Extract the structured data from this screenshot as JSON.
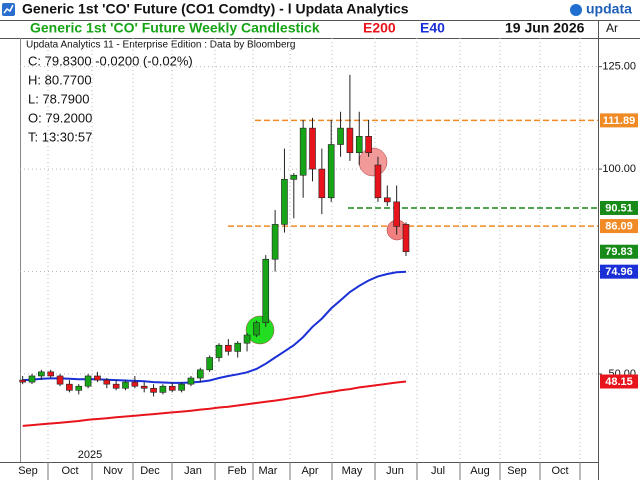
{
  "window": {
    "title": "Generic 1st 'CO' Future (CO1 Comdty) - l  Updata Analytics",
    "logo": "updata"
  },
  "chart_data": {
    "type": "candlestick",
    "title": "Generic 1st 'CO' Future Weekly Candlestick",
    "date": "19 Jun 2026",
    "corner_label": "Ar",
    "info": [
      "Updata Analytics 11 - Enterprise Edition : Data by Bloomberg",
      "C: 79.8300  -0.0200 (-0.02%)",
      "H: 80.7700",
      "L: 78.7900",
      "O: 79.2000",
      "T: 13:30:57"
    ],
    "x_labels": [
      "Sep",
      "Oct",
      "Nov",
      "Dec",
      "Jan",
      "Feb",
      "Mar",
      "Apr",
      "May",
      "Jun",
      "Jul",
      "Aug",
      "Sep",
      "Oct"
    ],
    "year_label": "2025",
    "up_color": "#17a517",
    "down_color": "#e8141c",
    "open": [
      48.5,
      48,
      49.5,
      50.5,
      49.5,
      47.5,
      46,
      47,
      49.5,
      48.5,
      47.5,
      46.5,
      48,
      47,
      46.5,
      45.5,
      47,
      46,
      47.5,
      49,
      51,
      54,
      57,
      55.5,
      57.5,
      59.5,
      62.5,
      78,
      86.5,
      97.5,
      98.5,
      110,
      100,
      93,
      106,
      110,
      104,
      108,
      101,
      93,
      92,
      86.5
    ],
    "high": [
      49.5,
      50,
      51,
      51,
      50,
      48.5,
      47.5,
      50,
      50.5,
      49,
      48.5,
      48.5,
      49.5,
      48,
      47.5,
      47.5,
      48,
      48,
      49.5,
      51.5,
      54.5,
      57.5,
      58.5,
      58,
      60,
      63,
      79,
      90,
      105,
      99,
      112,
      112.5,
      105,
      112,
      114,
      123,
      114,
      112,
      103,
      96,
      96,
      87
    ],
    "low": [
      47.5,
      47.5,
      48.5,
      49,
      47,
      45.5,
      45,
      46.5,
      48,
      46.5,
      46,
      46,
      46.5,
      45.5,
      44.5,
      45,
      45.5,
      45.5,
      47,
      48,
      50.5,
      53,
      54.5,
      54,
      55.5,
      59,
      61.5,
      75,
      84.5,
      88,
      93,
      97,
      89,
      92,
      103,
      102,
      101,
      103,
      92,
      91,
      84,
      78.79
    ],
    "close": [
      48,
      49.5,
      50.5,
      49.5,
      47.5,
      46,
      47,
      49.5,
      48.5,
      47.5,
      46.5,
      48,
      47,
      46.5,
      45.5,
      47,
      46,
      47.5,
      49,
      51,
      54,
      57,
      55.5,
      57.5,
      59.5,
      62.5,
      78,
      86.5,
      97.5,
      98.5,
      110,
      100,
      93,
      106,
      110,
      104,
      108,
      104,
      93,
      92,
      86,
      79.83
    ],
    "series": [
      {
        "name": "E200",
        "color": "#e8141c",
        "values": [
          37.3,
          37.5,
          37.7,
          37.9,
          38.1,
          38.3,
          38.5,
          38.8,
          39.0,
          39.2,
          39.4,
          39.6,
          39.8,
          40.0,
          40.2,
          40.4,
          40.6,
          40.8,
          41.0,
          41.3,
          41.5,
          41.8,
          42.0,
          42.3,
          42.6,
          42.9,
          43.2,
          43.5,
          43.8,
          44.2,
          44.5,
          44.9,
          45.3,
          45.6,
          46.0,
          46.3,
          46.7,
          47.0,
          47.3,
          47.6,
          47.9,
          48.15
        ]
      },
      {
        "name": "E40",
        "color": "#1a2fd6",
        "values": [
          48.5,
          48.6,
          48.8,
          48.9,
          48.9,
          48.8,
          48.7,
          48.7,
          48.7,
          48.6,
          48.5,
          48.4,
          48.3,
          48.2,
          48.0,
          47.9,
          47.8,
          47.8,
          47.9,
          48.1,
          48.4,
          49,
          49.5,
          49.9,
          50.4,
          51.2,
          52.5,
          54,
          55.5,
          57,
          59,
          61.5,
          63.5,
          66,
          68,
          70,
          71.5,
          72.8,
          73.8,
          74.4,
          74.8,
          74.96
        ]
      }
    ],
    "ylim": [
      28.5,
      132
    ],
    "yticks": [
      {
        "value": 50,
        "label": "50.00"
      },
      {
        "value": 75,
        "label": "75.00"
      },
      {
        "value": 100,
        "label": "100.00"
      },
      {
        "value": 125,
        "label": "125.00"
      }
    ],
    "grid": true,
    "price_markers": [
      {
        "value": 111.89,
        "color": "#f08a24",
        "line": "dashed"
      },
      {
        "value": 90.51,
        "color": "#178a17",
        "line": "dashed"
      },
      {
        "value": 86.09,
        "color": "#f08a24",
        "line": "dashed"
      },
      {
        "value": 79.83,
        "color": "#178a17"
      },
      {
        "value": 74.96,
        "color": "#1a2fd6"
      },
      {
        "value": 48.15,
        "color": "#e8141c"
      }
    ]
  }
}
